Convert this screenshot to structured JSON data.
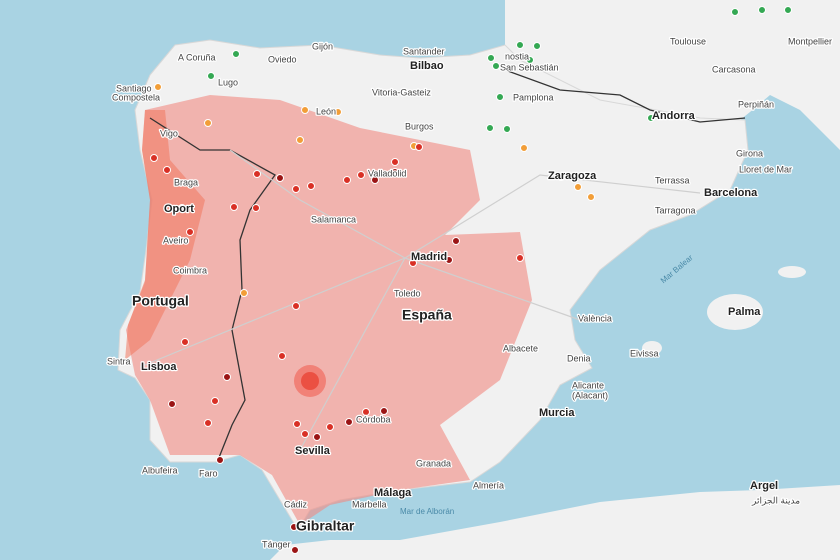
{
  "map": {
    "cities": [
      "A Coruña",
      "Gijón",
      "Santander",
      "Bilbao",
      "Toulouse",
      "Montpellier",
      "Lugo",
      "Oviedo",
      "nostia",
      "San Sebastián",
      "Carcasona",
      "Santiago",
      "Compostela",
      "León",
      "Vitoria-Gasteiz",
      "Pamplona",
      "Perpiñán",
      "Vigo",
      "Burgos",
      "Girona",
      "Lloret de Mar",
      "Braga",
      "Valladolid",
      "Zaragoza",
      "Terrassa",
      "Barcelona",
      "Oport",
      "Salamanca",
      "Tarragona",
      "Aveiro",
      "Madrid",
      "Coimbra",
      "Toledo",
      "València",
      "Palma",
      "Albacete",
      "Sintra",
      "Lisboa",
      "Denia",
      "Eivissa",
      "Alicante",
      "(Alacant)",
      "Murcia",
      "Córdoba",
      "Sevilla",
      "Albufeira",
      "Faro",
      "Granada",
      "Almería",
      "Málaga",
      "Argel",
      "مدينة الجزائر",
      "Cádiz",
      "Marbella",
      "Tánger"
    ],
    "countries": [
      "Portugal",
      "España",
      "Andorra",
      "Gibraltar"
    ],
    "seas": [
      "Mar Balear",
      "Mar de Alborán"
    ]
  }
}
